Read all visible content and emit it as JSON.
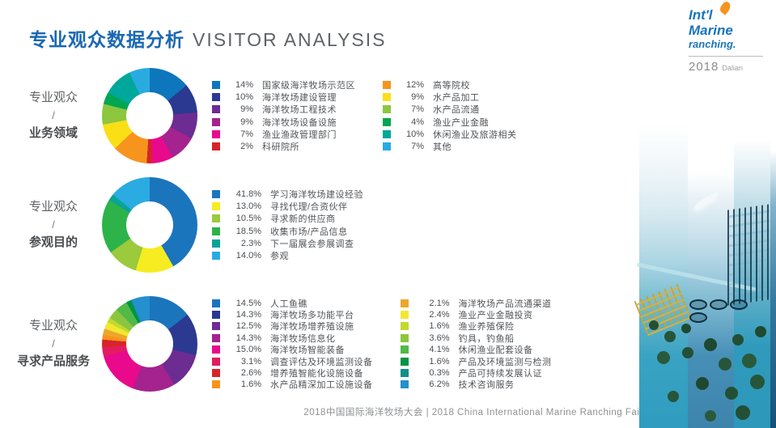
{
  "title": {
    "zh": "专业观众数据分析",
    "en": "VISITOR ANALYSIS"
  },
  "logo": {
    "line1": "Int'l",
    "line2": "Marine",
    "line3": "ranching.",
    "year": "2018",
    "city": "Dalian"
  },
  "footer": "2018中国国际海洋牧场大会 | 2018 China International Marine Ranching Fair",
  "accent_color": "#1a68b2",
  "chart_data": [
    {
      "type": "pie",
      "donut": true,
      "group_label": "专业观众",
      "separator": "/",
      "dimension_label": "业务领域",
      "legend_columns": [
        6,
        6
      ],
      "pct_style": "narrow",
      "segments": [
        {
          "label": "国家级海洋牧场示范区",
          "pct": "14%",
          "value": 14,
          "color": "#0e76bc"
        },
        {
          "label": "海洋牧场建设管理",
          "pct": "10%",
          "value": 10,
          "color": "#2b3990"
        },
        {
          "label": "海洋牧场工程技术",
          "pct": "9%",
          "value": 9,
          "color": "#6d2c91"
        },
        {
          "label": "海洋牧场设备设施",
          "pct": "9%",
          "value": 9,
          "color": "#a4238e"
        },
        {
          "label": "渔业渔政管理部门",
          "pct": "7%",
          "value": 7,
          "color": "#e9098c"
        },
        {
          "label": "科研院所",
          "pct": "2%",
          "value": 2,
          "color": "#d8232a"
        },
        {
          "label": "高等院校",
          "pct": "12%",
          "value": 12,
          "color": "#f7941e"
        },
        {
          "label": "水产品加工",
          "pct": "9%",
          "value": 9,
          "color": "#fadf17"
        },
        {
          "label": "水产品流通",
          "pct": "7%",
          "value": 7,
          "color": "#8dc63f"
        },
        {
          "label": "渔业产业金融",
          "pct": "4%",
          "value": 4,
          "color": "#00a651"
        },
        {
          "label": "休闲渔业及旅游相关",
          "pct": "10%",
          "value": 10,
          "color": "#00a79b"
        },
        {
          "label": "其他",
          "pct": "7%",
          "value": 7,
          "color": "#29abe2"
        }
      ]
    },
    {
      "type": "pie",
      "donut": true,
      "group_label": "专业观众",
      "separator": "/",
      "dimension_label": "参观目的",
      "legend_columns": [
        6
      ],
      "pct_style": "wide",
      "segments": [
        {
          "label": "学习海洋牧场建设经验",
          "pct": "41.8%",
          "value": 41.8,
          "color": "#1b75bc"
        },
        {
          "label": "寻找代理/合资伙伴",
          "pct": "13.0%",
          "value": 13.0,
          "color": "#f7ec21"
        },
        {
          "label": "寻求新的供应商",
          "pct": "10.5%",
          "value": 10.5,
          "color": "#9bca3c"
        },
        {
          "label": "收集市场/产品信息",
          "pct": "18.5%",
          "value": 18.5,
          "color": "#2db34a"
        },
        {
          "label": "下一届展会参展调查",
          "pct": "2.3%",
          "value": 2.3,
          "color": "#0aa396"
        },
        {
          "label": "参观",
          "pct": "14.0%",
          "value": 14.0,
          "color": "#2aabe2"
        }
      ]
    },
    {
      "type": "pie",
      "donut": true,
      "group_label": "专业观众",
      "separator": "/",
      "dimension_label": "寻求产品服务",
      "legend_columns": [
        8,
        8
      ],
      "pct_style": "wide",
      "segments": [
        {
          "label": "人工鱼礁",
          "pct": "14.5%",
          "value": 14.5,
          "color": "#1b75bc"
        },
        {
          "label": "海洋牧场多功能平台",
          "pct": "14.3%",
          "value": 14.3,
          "color": "#2b3990"
        },
        {
          "label": "海洋牧场增养殖设施",
          "pct": "12.5%",
          "value": 12.5,
          "color": "#6d2c91"
        },
        {
          "label": "海洋牧场信息化",
          "pct": "14.3%",
          "value": 14.3,
          "color": "#a4238e"
        },
        {
          "label": "海洋牧场智能装备",
          "pct": "15.0%",
          "value": 15.0,
          "color": "#e9098c"
        },
        {
          "label": "调查评估及环境监测设备",
          "pct": "3.1%",
          "value": 3.1,
          "color": "#e21c5e"
        },
        {
          "label": "增养殖智能化设施设备",
          "pct": "2.6%",
          "value": 2.6,
          "color": "#d8232a"
        },
        {
          "label": "水产品精深加工设施设备",
          "pct": "1.6%",
          "value": 1.6,
          "color": "#f7941e"
        },
        {
          "label": "海洋牧场产品流通渠道",
          "pct": "2.1%",
          "value": 2.1,
          "color": "#eca62c"
        },
        {
          "label": "渔业产业金融投资",
          "pct": "2.4%",
          "value": 2.4,
          "color": "#f2e831"
        },
        {
          "label": "渔业养殖保险",
          "pct": "1.6%",
          "value": 1.6,
          "color": "#c3d92e"
        },
        {
          "label": "钓具，钓鱼船",
          "pct": "3.6%",
          "value": 3.6,
          "color": "#8cc63f"
        },
        {
          "label": "休闲渔业配套设备",
          "pct": "4.1%",
          "value": 4.1,
          "color": "#52b848"
        },
        {
          "label": "产品及环境监测与检测",
          "pct": "1.6%",
          "value": 1.6,
          "color": "#009447"
        },
        {
          "label": "产品可持续发展认证",
          "pct": "0.3%",
          "value": 0.3,
          "color": "#0d9188"
        },
        {
          "label": "技术咨询服务",
          "pct": "6.2%",
          "value": 6.2,
          "color": "#2590ce"
        }
      ]
    }
  ]
}
